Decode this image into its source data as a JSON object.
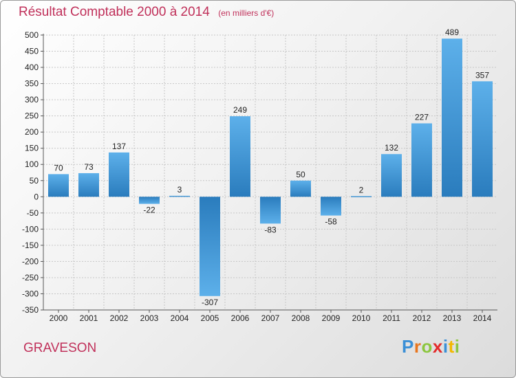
{
  "title": "Résultat Comptable 2000 à 2014",
  "subtitle": "(en milliers d'€)",
  "commune": "GRAVESON",
  "logo": {
    "letters": [
      {
        "ch": "P",
        "color": "#3a8fd6"
      },
      {
        "ch": "r",
        "color": "#e8761e"
      },
      {
        "ch": "o",
        "color": "#8cc63f"
      },
      {
        "ch": "x",
        "color": "#e32b2b"
      },
      {
        "ch": "i",
        "color": "#3a8fd6"
      },
      {
        "ch": "t",
        "color": "#f2b800"
      },
      {
        "ch": "i",
        "color": "#8cc63f"
      }
    ]
  },
  "colors": {
    "bar_top": "#5db0ea",
    "bar_bottom": "#2a7cbd",
    "text": "#c0305a"
  },
  "chart_data": {
    "type": "bar",
    "categories": [
      "2000",
      "2001",
      "2002",
      "2003",
      "2004",
      "2005",
      "2006",
      "2007",
      "2008",
      "2009",
      "2010",
      "2011",
      "2012",
      "2013",
      "2014"
    ],
    "values": [
      70,
      73,
      137,
      -22,
      3,
      -307,
      249,
      -83,
      50,
      -58,
      2,
      132,
      227,
      489,
      357
    ],
    "ylim": [
      -350,
      500
    ],
    "yticks": [
      500,
      450,
      400,
      350,
      300,
      250,
      200,
      150,
      100,
      50,
      0,
      -50,
      -100,
      -150,
      -200,
      -250,
      -300,
      -350
    ],
    "grid": true
  }
}
